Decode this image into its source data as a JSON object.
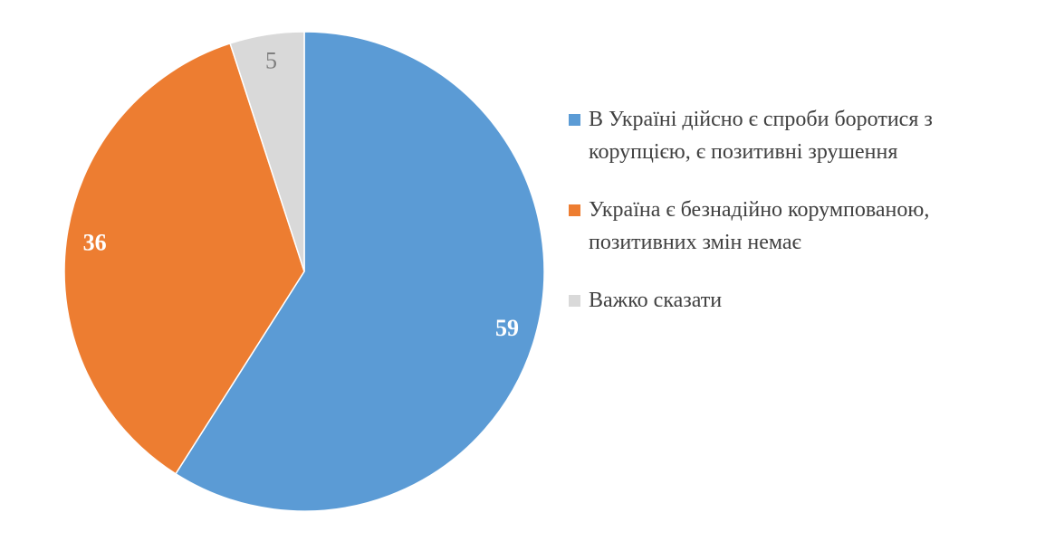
{
  "chart_data": {
    "type": "pie",
    "categories": [
      "В Україні дійсно є спроби боротися з корупцією, є позитивні зрушення",
      "Україна є безнадійно корумпованою, позитивних змін немає",
      "Важко сказати"
    ],
    "values": [
      59,
      36,
      5
    ],
    "colors": [
      "#5b9bd5",
      "#ed7d31",
      "#d9d9d9"
    ],
    "legend": "right"
  }
}
